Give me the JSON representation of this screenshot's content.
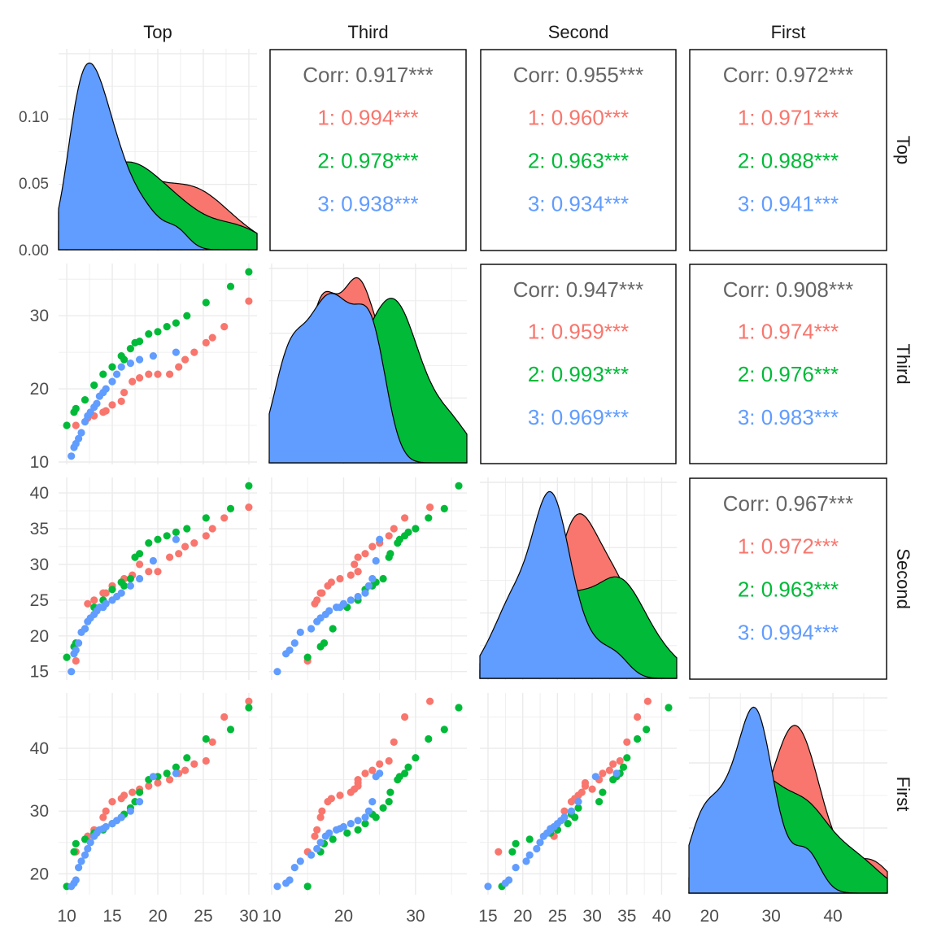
{
  "chart_data": {
    "type": "scatter-matrix",
    "variables": [
      "Top",
      "Third",
      "Second",
      "First"
    ],
    "axes": {
      "Top": {
        "ticks": [
          10,
          15,
          20,
          25,
          30
        ]
      },
      "Third": {
        "ticks": [
          10,
          20,
          30
        ]
      },
      "Second": {
        "ticks": [
          15,
          20,
          25,
          30,
          35,
          40
        ]
      },
      "First": {
        "ticks": [
          20,
          30,
          40
        ]
      }
    },
    "density_yaxis": {
      "ticks": [
        "0.00",
        "0.05",
        "0.10"
      ]
    },
    "groups": [
      {
        "name": "1",
        "color": "#F8766D"
      },
      {
        "name": "2",
        "color": "#00BA38"
      },
      {
        "name": "3",
        "color": "#619CFF"
      }
    ],
    "overall_color": "#666666",
    "correlations": [
      {
        "row": "Top",
        "col": "Third",
        "overall": "Corr: 0.917***",
        "groups": [
          "1: 0.994***",
          "2: 0.978***",
          "3: 0.938***"
        ]
      },
      {
        "row": "Top",
        "col": "Second",
        "overall": "Corr: 0.955***",
        "groups": [
          "1: 0.960***",
          "2: 0.963***",
          "3: 0.934***"
        ]
      },
      {
        "row": "Top",
        "col": "First",
        "overall": "Corr: 0.972***",
        "groups": [
          "1: 0.971***",
          "2: 0.988***",
          "3: 0.941***"
        ]
      },
      {
        "row": "Third",
        "col": "Second",
        "overall": "Corr: 0.947***",
        "groups": [
          "1: 0.959***",
          "2: 0.993***",
          "3: 0.969***"
        ]
      },
      {
        "row": "Third",
        "col": "First",
        "overall": "Corr: 0.908***",
        "groups": [
          "1: 0.974***",
          "2: 0.976***",
          "3: 0.983***"
        ]
      },
      {
        "row": "Second",
        "col": "First",
        "overall": "Corr: 0.967***",
        "groups": [
          "1: 0.972***",
          "2: 0.963***",
          "3: 0.994***"
        ]
      }
    ],
    "data": {
      "1": [
        [
          11.0,
          15.0,
          16.5,
          23.5
        ],
        [
          12.3,
          16.0,
          24.5,
          26.0
        ],
        [
          13.0,
          16.3,
          25.0,
          27.0
        ],
        [
          14.0,
          16.8,
          26.0,
          29.0
        ],
        [
          14.3,
          17.0,
          26.0,
          30.0
        ],
        [
          15.0,
          17.8,
          27.0,
          31.5
        ],
        [
          16.0,
          18.3,
          27.5,
          32.0
        ],
        [
          16.3,
          19.5,
          28.0,
          32.5
        ],
        [
          17.2,
          21.0,
          28.5,
          33.0
        ],
        [
          18.0,
          21.5,
          30.0,
          33.5
        ],
        [
          19.0,
          22.0,
          29.0,
          34.0
        ],
        [
          20.0,
          22.0,
          29.0,
          34.5
        ],
        [
          21.3,
          22.0,
          31.0,
          35.0
        ],
        [
          22.3,
          23.0,
          31.5,
          36.0
        ],
        [
          23.0,
          24.0,
          32.5,
          36.5
        ],
        [
          24.0,
          25.0,
          33.0,
          37.5
        ],
        [
          25.3,
          26.3,
          34.0,
          38.0
        ],
        [
          26.0,
          27.0,
          35.0,
          41.0
        ],
        [
          27.3,
          28.5,
          36.5,
          45.0
        ],
        [
          30.0,
          32.0,
          38.0,
          47.5
        ]
      ],
      "2": [
        [
          10.0,
          15.0,
          17.0,
          18.0
        ],
        [
          10.8,
          16.8,
          18.5,
          23.5
        ],
        [
          11.0,
          17.3,
          19.0,
          24.8
        ],
        [
          12.0,
          18.5,
          21.0,
          25.5
        ],
        [
          13.0,
          20.5,
          24.0,
          26.5
        ],
        [
          14.0,
          22.0,
          25.0,
          27.0
        ],
        [
          15.0,
          23.0,
          26.5,
          28.0
        ],
        [
          16.0,
          24.5,
          27.5,
          29.0
        ],
        [
          16.3,
          24.0,
          27.0,
          29.5
        ],
        [
          17.0,
          25.5,
          28.0,
          30.5
        ],
        [
          17.5,
          26.3,
          31.0,
          31.5
        ],
        [
          18.0,
          26.5,
          31.5,
          33.0
        ],
        [
          19.0,
          27.5,
          33.0,
          35.0
        ],
        [
          20.0,
          27.8,
          33.5,
          35.5
        ],
        [
          21.0,
          28.5,
          34.0,
          36.0
        ],
        [
          22.0,
          29.0,
          34.5,
          37.0
        ],
        [
          23.2,
          30.0,
          35.0,
          38.5
        ],
        [
          25.3,
          31.8,
          36.5,
          41.5
        ],
        [
          28.0,
          34.0,
          37.8,
          43.0
        ],
        [
          30.0,
          36.0,
          41.0,
          46.5
        ]
      ],
      "3": [
        [
          10.5,
          10.8,
          15.0,
          18.0
        ],
        [
          10.8,
          12.0,
          17.5,
          18.5
        ],
        [
          11.0,
          12.5,
          18.0,
          19.0
        ],
        [
          11.3,
          13.2,
          19.0,
          21.0
        ],
        [
          11.6,
          14.0,
          20.5,
          22.0
        ],
        [
          12.0,
          15.5,
          21.0,
          23.0
        ],
        [
          12.3,
          16.3,
          22.0,
          24.0
        ],
        [
          12.6,
          16.8,
          22.5,
          25.0
        ],
        [
          13.0,
          17.5,
          23.0,
          26.0
        ],
        [
          13.3,
          18.0,
          23.5,
          26.5
        ],
        [
          13.6,
          19.0,
          24.0,
          27.0
        ],
        [
          14.0,
          19.5,
          24.0,
          27.2
        ],
        [
          14.3,
          20.0,
          24.5,
          27.5
        ],
        [
          15.0,
          21.0,
          25.0,
          28.0
        ],
        [
          15.5,
          22.0,
          25.5,
          28.5
        ],
        [
          16.0,
          23.0,
          26.0,
          29.0
        ],
        [
          17.0,
          23.5,
          27.0,
          30.0
        ],
        [
          18.0,
          24.0,
          28.0,
          31.5
        ],
        [
          19.5,
          24.5,
          30.5,
          35.5
        ],
        [
          22.0,
          25.0,
          33.5,
          36.0
        ]
      ]
    }
  }
}
